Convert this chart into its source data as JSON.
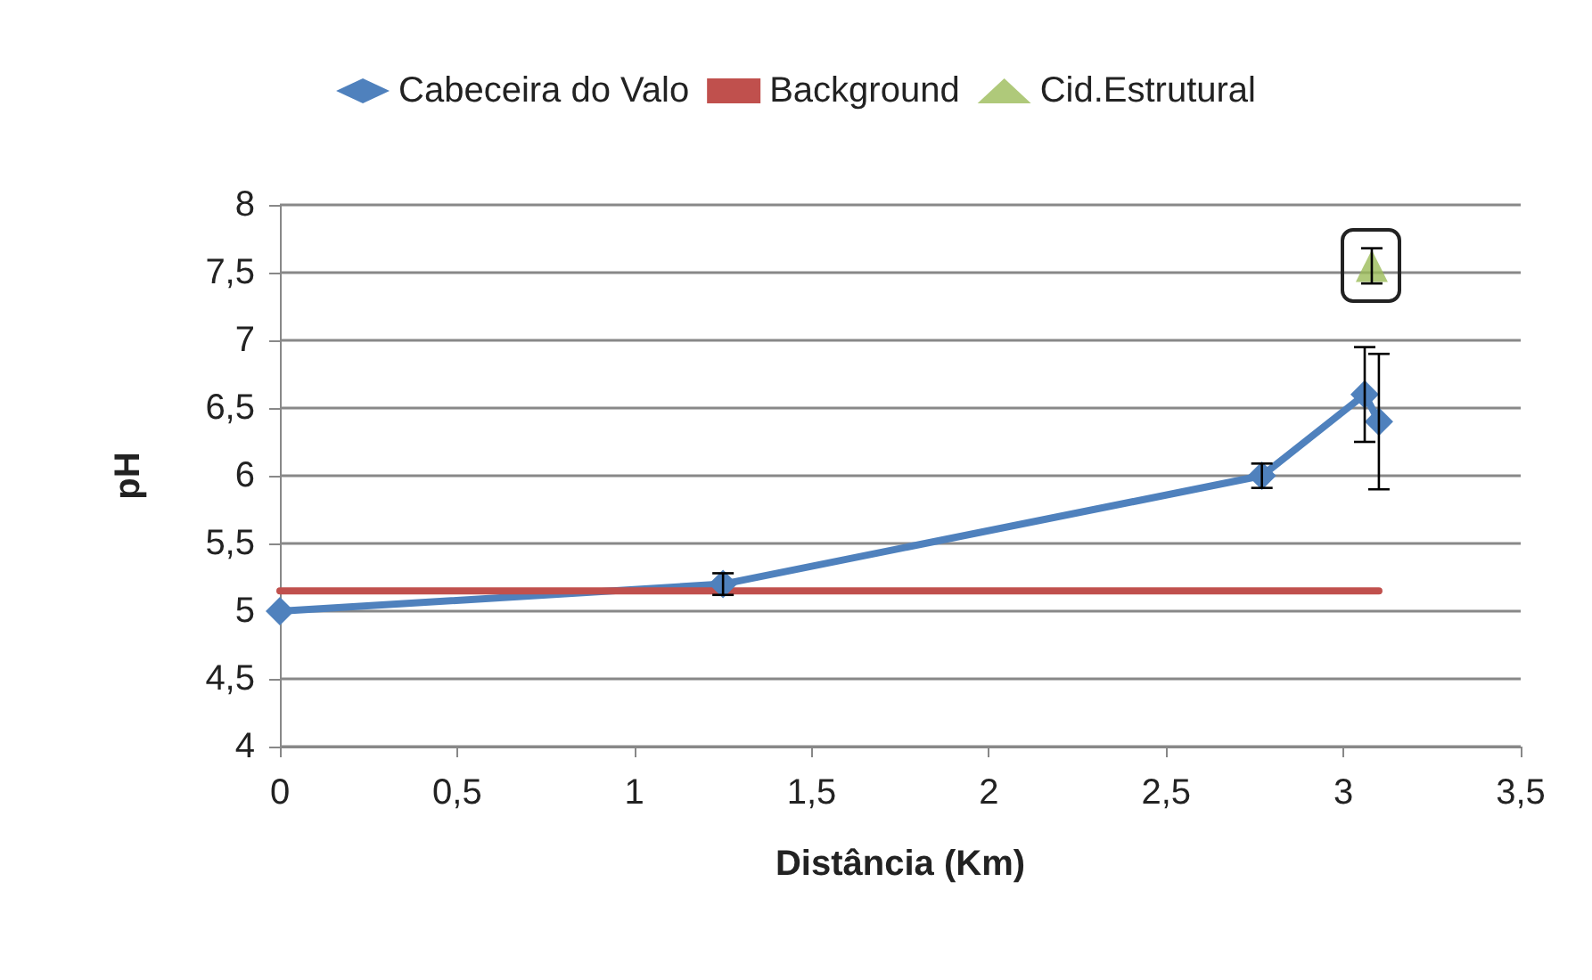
{
  "chart_data": {
    "type": "line",
    "xlabel": "Distância (Km)",
    "ylabel": "pH",
    "xlim": [
      0,
      3.5
    ],
    "xticks": [
      {
        "value": 0,
        "label": "0"
      },
      {
        "value": 0.5,
        "label": "0,5"
      },
      {
        "value": 1,
        "label": "1"
      },
      {
        "value": 1.5,
        "label": "1,5"
      },
      {
        "value": 2,
        "label": "2"
      },
      {
        "value": 2.5,
        "label": "2,5"
      },
      {
        "value": 3,
        "label": "3"
      },
      {
        "value": 3.5,
        "label": "3,5"
      }
    ],
    "ylim": [
      4,
      8
    ],
    "yticks": [
      {
        "value": 4,
        "label": "4"
      },
      {
        "value": 4.5,
        "label": "4,5"
      },
      {
        "value": 5,
        "label": "5"
      },
      {
        "value": 5.5,
        "label": "5,5"
      },
      {
        "value": 6,
        "label": "6"
      },
      {
        "value": 6.5,
        "label": "6,5"
      },
      {
        "value": 7,
        "label": "7"
      },
      {
        "value": 7.5,
        "label": "7,5"
      },
      {
        "value": 8,
        "label": "8"
      }
    ],
    "grid": "y",
    "legend": "top",
    "series": [
      {
        "name": "Cabeceira do Valo",
        "color": "#4f81bd",
        "type": "line",
        "marker": "diamond",
        "x": [
          0,
          1.25,
          2.77,
          3.06,
          3.1
        ],
        "values": [
          5.0,
          5.2,
          6.0,
          6.6,
          6.4
        ],
        "errors": [
          null,
          0.08,
          0.09,
          0.35,
          0.5
        ]
      },
      {
        "name": "Background",
        "color": "#c0504d",
        "type": "line",
        "marker": "none",
        "x": [
          0,
          3.1
        ],
        "values": [
          5.15,
          5.15
        ]
      },
      {
        "name": "Cid.Estrutural",
        "color": "#9bbb59",
        "type": "scatter",
        "marker": "triangle",
        "x": [
          3.08
        ],
        "values": [
          7.55
        ],
        "errors": [
          0.13
        ]
      }
    ]
  }
}
